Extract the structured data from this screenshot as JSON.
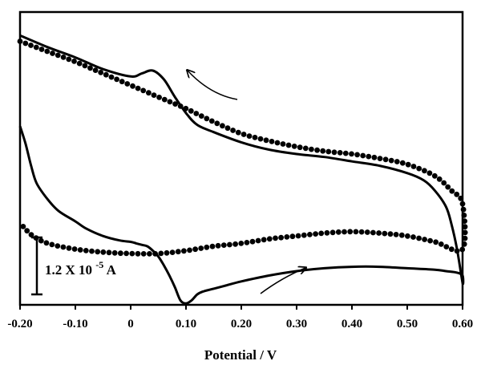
{
  "chart_data": {
    "type": "line",
    "title": "",
    "xlabel": "Potential / V",
    "ylabel": "",
    "xlim": [
      -0.2,
      0.6
    ],
    "ylim": [
      -1.0,
      1.0
    ],
    "x_ticks": [
      "-0.20",
      "-0.10",
      "0",
      "0.10",
      "0.20",
      "0.30",
      "0.40",
      "0.50",
      "0.60"
    ],
    "x_tick_values": [
      -0.2,
      -0.1,
      0,
      0.1,
      0.2,
      0.3,
      0.4,
      0.5,
      0.6
    ],
    "grid": false,
    "legend": "none",
    "scale_bar": {
      "label_main": "1.2 X 10",
      "label_exp": "-5",
      "label_unit": "A"
    },
    "series": [
      {
        "style": "solid",
        "x": [
          -0.2,
          -0.15,
          -0.1,
          -0.05,
          0.0,
          0.02,
          0.04,
          0.06,
          0.08,
          0.1,
          0.12,
          0.15,
          0.2,
          0.25,
          0.3,
          0.35,
          0.4,
          0.45,
          0.5,
          0.53,
          0.55,
          0.57,
          0.58,
          0.59,
          0.6,
          0.6,
          0.59,
          0.57,
          0.55,
          0.5,
          0.45,
          0.4,
          0.35,
          0.3,
          0.25,
          0.2,
          0.17,
          0.15,
          0.13,
          0.12,
          0.11,
          0.1,
          0.09,
          0.08,
          0.07,
          0.06,
          0.05,
          0.04,
          0.03,
          0.02,
          0.01,
          0.0,
          -0.02,
          -0.05,
          -0.08,
          -0.1,
          -0.13,
          -0.15,
          -0.17,
          -0.18,
          -0.19,
          -0.2
        ],
        "y": [
          0.84,
          0.76,
          0.69,
          0.61,
          0.56,
          0.58,
          0.6,
          0.54,
          0.42,
          0.31,
          0.23,
          0.18,
          0.11,
          0.06,
          0.03,
          0.01,
          -0.02,
          -0.05,
          -0.1,
          -0.15,
          -0.22,
          -0.33,
          -0.45,
          -0.62,
          -0.85,
          -0.8,
          -0.78,
          -0.77,
          -0.76,
          -0.75,
          -0.74,
          -0.74,
          -0.75,
          -0.77,
          -0.8,
          -0.84,
          -0.87,
          -0.89,
          -0.91,
          -0.93,
          -0.97,
          -0.99,
          -0.97,
          -0.88,
          -0.8,
          -0.73,
          -0.67,
          -0.63,
          -0.6,
          -0.59,
          -0.58,
          -0.57,
          -0.56,
          -0.53,
          -0.48,
          -0.43,
          -0.36,
          -0.28,
          -0.17,
          -0.05,
          0.1,
          0.22
        ]
      },
      {
        "style": "dotted",
        "x": [
          -0.2,
          -0.15,
          -0.1,
          -0.05,
          0.0,
          0.05,
          0.1,
          0.15,
          0.2,
          0.25,
          0.3,
          0.35,
          0.4,
          0.45,
          0.5,
          0.55,
          0.58,
          0.6,
          0.6,
          0.55,
          0.5,
          0.45,
          0.4,
          0.35,
          0.3,
          0.25,
          0.2,
          0.15,
          0.1,
          0.05,
          0.0,
          -0.05,
          -0.1,
          -0.15,
          -0.18,
          -0.2
        ],
        "y": [
          0.8,
          0.73,
          0.66,
          0.58,
          0.5,
          0.42,
          0.34,
          0.25,
          0.17,
          0.12,
          0.08,
          0.05,
          0.03,
          0.0,
          -0.04,
          -0.12,
          -0.22,
          -0.31,
          -0.62,
          -0.57,
          -0.53,
          -0.51,
          -0.5,
          -0.51,
          -0.53,
          -0.55,
          -0.58,
          -0.6,
          -0.63,
          -0.65,
          -0.65,
          -0.64,
          -0.62,
          -0.58,
          -0.52,
          -0.44
        ]
      }
    ]
  }
}
